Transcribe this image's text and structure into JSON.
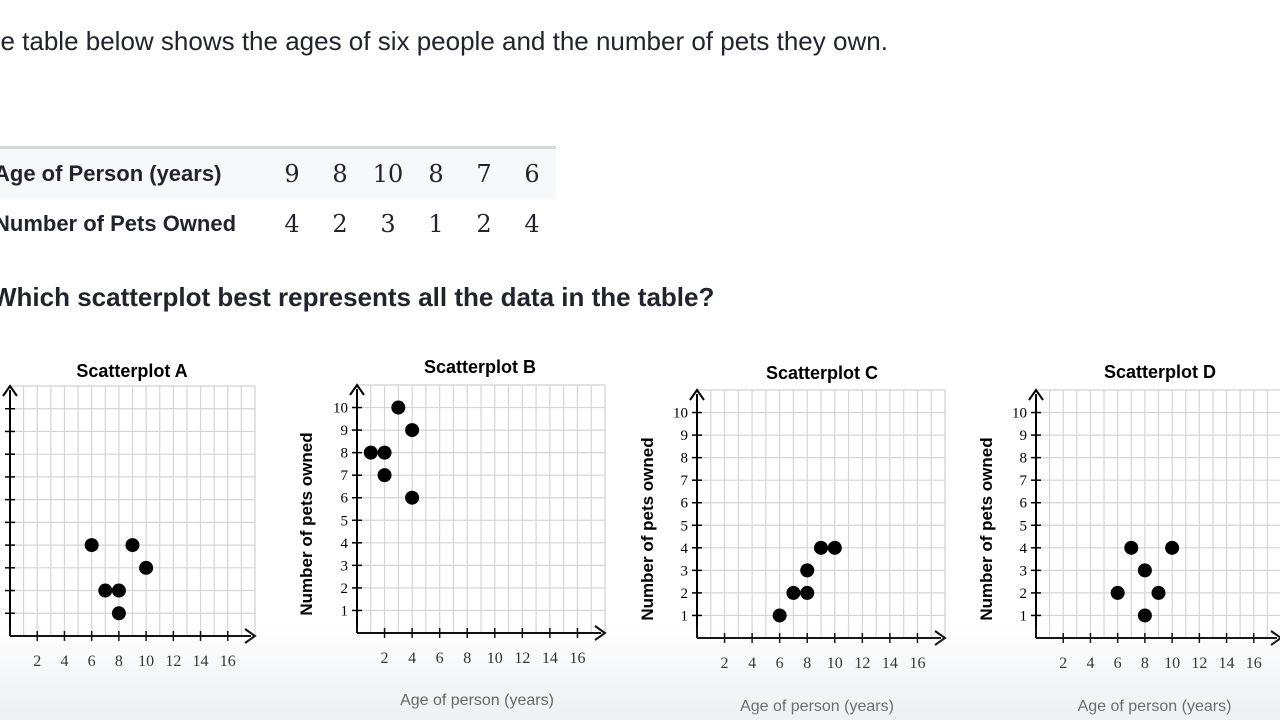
{
  "prompt": "he table below shows the ages of six people and the number of pets they own.",
  "table": {
    "rows": [
      {
        "label": "Age of Person (years)",
        "values": [
          "9",
          "8",
          "10",
          "8",
          "7",
          "6"
        ]
      },
      {
        "label": "Number of Pets Owned",
        "values": [
          "4",
          "2",
          "3",
          "1",
          "2",
          "4"
        ]
      }
    ]
  },
  "question": "Which scatterplot best represents all the data in the table?",
  "chart_data": [
    {
      "type": "scatter",
      "title": "Scatterplot A",
      "xlabel": "",
      "ylabel": "",
      "xlim": [
        0,
        18
      ],
      "ylim": [
        0,
        11
      ],
      "x_ticks": [
        "2",
        "4",
        "6",
        "8",
        "10",
        "12",
        "14",
        "16"
      ],
      "y_ticks": [],
      "points": [
        [
          6,
          4
        ],
        [
          9,
          4
        ],
        [
          10,
          3
        ],
        [
          7,
          2
        ],
        [
          8,
          2
        ],
        [
          8,
          1
        ]
      ]
    },
    {
      "type": "scatter",
      "title": "Scatterplot B",
      "xlabel": "Age of person (years)",
      "ylabel": "Number of pets owned",
      "xlim": [
        0,
        18
      ],
      "ylim": [
        0,
        11
      ],
      "x_ticks": [
        "2",
        "4",
        "6",
        "8",
        "10",
        "12",
        "14",
        "16"
      ],
      "y_ticks": [
        "1",
        "2",
        "3",
        "4",
        "5",
        "6",
        "7",
        "8",
        "9",
        "10"
      ],
      "points": [
        [
          3,
          10
        ],
        [
          4,
          9
        ],
        [
          1,
          8
        ],
        [
          2,
          8
        ],
        [
          2,
          7
        ],
        [
          4,
          6
        ]
      ]
    },
    {
      "type": "scatter",
      "title": "Scatterplot C",
      "xlabel": "Age of person (years)",
      "ylabel": "Number of pets owned",
      "xlim": [
        0,
        18
      ],
      "ylim": [
        0,
        11
      ],
      "x_ticks": [
        "2",
        "4",
        "6",
        "8",
        "10",
        "12",
        "14",
        "16"
      ],
      "y_ticks": [
        "1",
        "2",
        "3",
        "4",
        "5",
        "6",
        "7",
        "8",
        "9",
        "10"
      ],
      "points": [
        [
          9,
          4
        ],
        [
          10,
          4
        ],
        [
          8,
          3
        ],
        [
          7,
          2
        ],
        [
          8,
          2
        ],
        [
          6,
          1
        ]
      ]
    },
    {
      "type": "scatter",
      "title": "Scatterplot D",
      "xlabel": "Age of person (years)",
      "ylabel": "Number of pets owned",
      "xlim": [
        0,
        18
      ],
      "ylim": [
        0,
        11
      ],
      "x_ticks": [
        "2",
        "4",
        "6",
        "8",
        "10",
        "12",
        "14",
        "16"
      ],
      "y_ticks": [
        "1",
        "2",
        "3",
        "4",
        "5",
        "6",
        "7",
        "8",
        "9",
        "10"
      ],
      "points": [
        [
          7,
          4
        ],
        [
          10,
          4
        ],
        [
          8,
          3
        ],
        [
          6,
          2
        ],
        [
          9,
          2
        ],
        [
          8,
          1
        ]
      ]
    }
  ]
}
